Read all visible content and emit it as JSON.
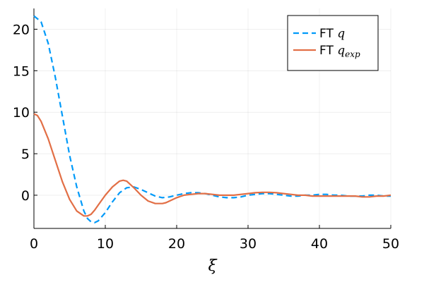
{
  "chart_data": {
    "type": "line",
    "title": "",
    "xlabel": "ξ",
    "ylabel": "",
    "xlim": [
      0,
      50
    ],
    "ylim": [
      -4,
      22.5
    ],
    "xticks": [
      0,
      10,
      20,
      30,
      40,
      50
    ],
    "yticks": [
      0,
      5,
      10,
      15,
      20
    ],
    "grid": true,
    "legend_position": "top-right",
    "series": [
      {
        "name_prefix": "FT ",
        "name_math": "q",
        "name_sub": "",
        "color": "#009af9",
        "style": "dashed",
        "x": [
          0,
          1,
          2,
          3,
          4,
          5,
          6,
          7,
          7.5,
          8,
          8.5,
          9,
          10,
          11,
          12,
          13,
          14,
          15,
          16,
          17,
          18,
          19,
          20,
          21,
          22,
          23,
          24,
          25,
          26,
          27,
          28,
          29,
          30,
          31,
          32,
          33,
          34,
          35,
          36,
          37,
          38,
          39,
          40,
          41,
          42,
          43,
          44,
          45,
          46,
          47,
          48,
          49,
          50
        ],
        "y": [
          21.6,
          20.9,
          18.3,
          14.2,
          9.5,
          4.8,
          1.0,
          -1.9,
          -2.8,
          -3.2,
          -3.3,
          -3.1,
          -2.1,
          -0.8,
          0.3,
          0.9,
          1.0,
          0.7,
          0.3,
          -0.1,
          -0.3,
          -0.2,
          0.0,
          0.2,
          0.3,
          0.3,
          0.2,
          0.0,
          -0.2,
          -0.3,
          -0.3,
          -0.2,
          0.0,
          0.1,
          0.2,
          0.2,
          0.1,
          0.0,
          -0.1,
          -0.1,
          0.0,
          0.0,
          0.1,
          0.1,
          0.0,
          0.0,
          -0.1,
          -0.1,
          -0.1,
          0.0,
          0.0,
          -0.1,
          -0.1
        ]
      },
      {
        "name_prefix": "FT ",
        "name_math": "q",
        "name_sub": "exp",
        "color": "#e26f46",
        "style": "solid",
        "x": [
          0,
          0.5,
          1,
          2,
          3,
          4,
          5,
          6,
          7,
          7.5,
          8,
          8.5,
          9,
          10,
          11,
          12,
          12.5,
          13,
          14,
          15,
          16,
          17,
          18,
          18.5,
          19,
          20,
          21,
          22,
          23,
          24,
          25,
          26,
          27,
          28,
          29,
          30,
          31,
          32,
          33,
          34,
          35,
          36,
          37,
          38,
          39,
          40,
          41,
          42,
          43,
          44,
          45,
          46,
          47,
          48,
          49,
          50
        ],
        "y": [
          9.8,
          9.6,
          8.9,
          6.8,
          4.2,
          1.6,
          -0.5,
          -1.9,
          -2.5,
          -2.5,
          -2.3,
          -1.8,
          -1.2,
          0.0,
          1.0,
          1.7,
          1.8,
          1.7,
          0.9,
          0.0,
          -0.7,
          -1.0,
          -1.0,
          -0.9,
          -0.7,
          -0.3,
          0.0,
          0.1,
          0.2,
          0.2,
          0.1,
          0.0,
          0.0,
          0.0,
          0.1,
          0.2,
          0.3,
          0.35,
          0.35,
          0.3,
          0.2,
          0.1,
          0.0,
          0.0,
          -0.1,
          -0.1,
          -0.1,
          -0.1,
          -0.1,
          -0.1,
          -0.1,
          -0.2,
          -0.2,
          -0.1,
          -0.1,
          0.0
        ]
      }
    ]
  }
}
